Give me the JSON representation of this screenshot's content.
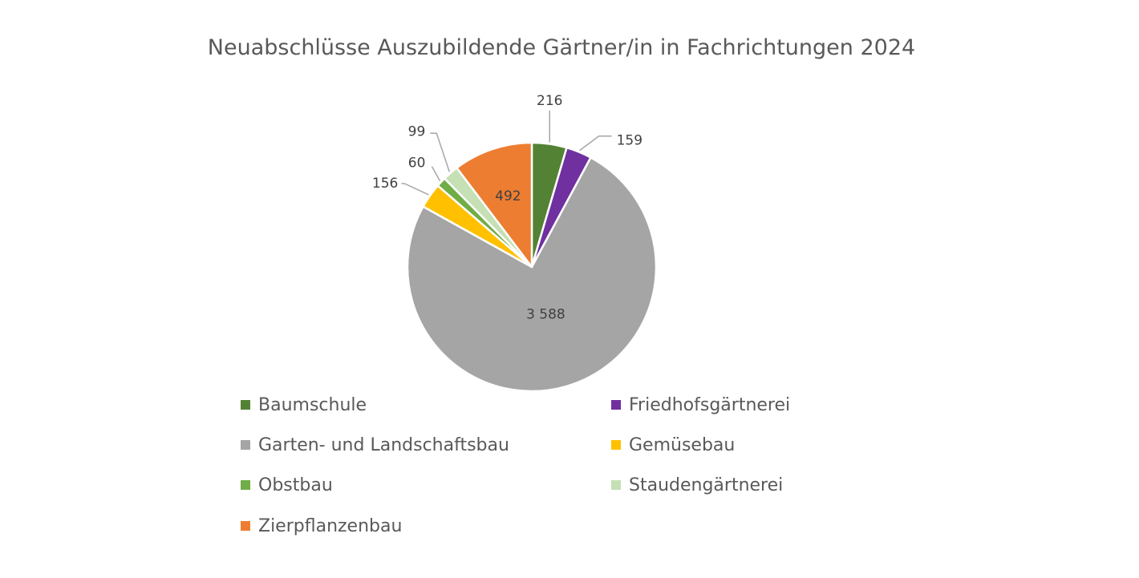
{
  "chart_data": {
    "type": "pie",
    "title": "Neuabschlüsse Auszubildende Gärtner/in in Fachrichtungen 2024",
    "legend_position": "bottom",
    "categories": [
      "Baumschule",
      "Friedhofsgärtnerei",
      "Garten- und Landschaftsbau",
      "Gemüsebau",
      "Obstbau",
      "Staudengärtnerei",
      "Zierpflanzenbau"
    ],
    "values": [
      216,
      159,
      3588,
      156,
      60,
      99,
      492
    ],
    "data_labels": [
      "216",
      "159",
      "3 588",
      "156",
      "60",
      "99",
      "492"
    ],
    "colors": [
      "#548235",
      "#7030A0",
      "#A5A5A5",
      "#FFC000",
      "#70AD47",
      "#C5E0B4",
      "#ED7D31"
    ]
  }
}
